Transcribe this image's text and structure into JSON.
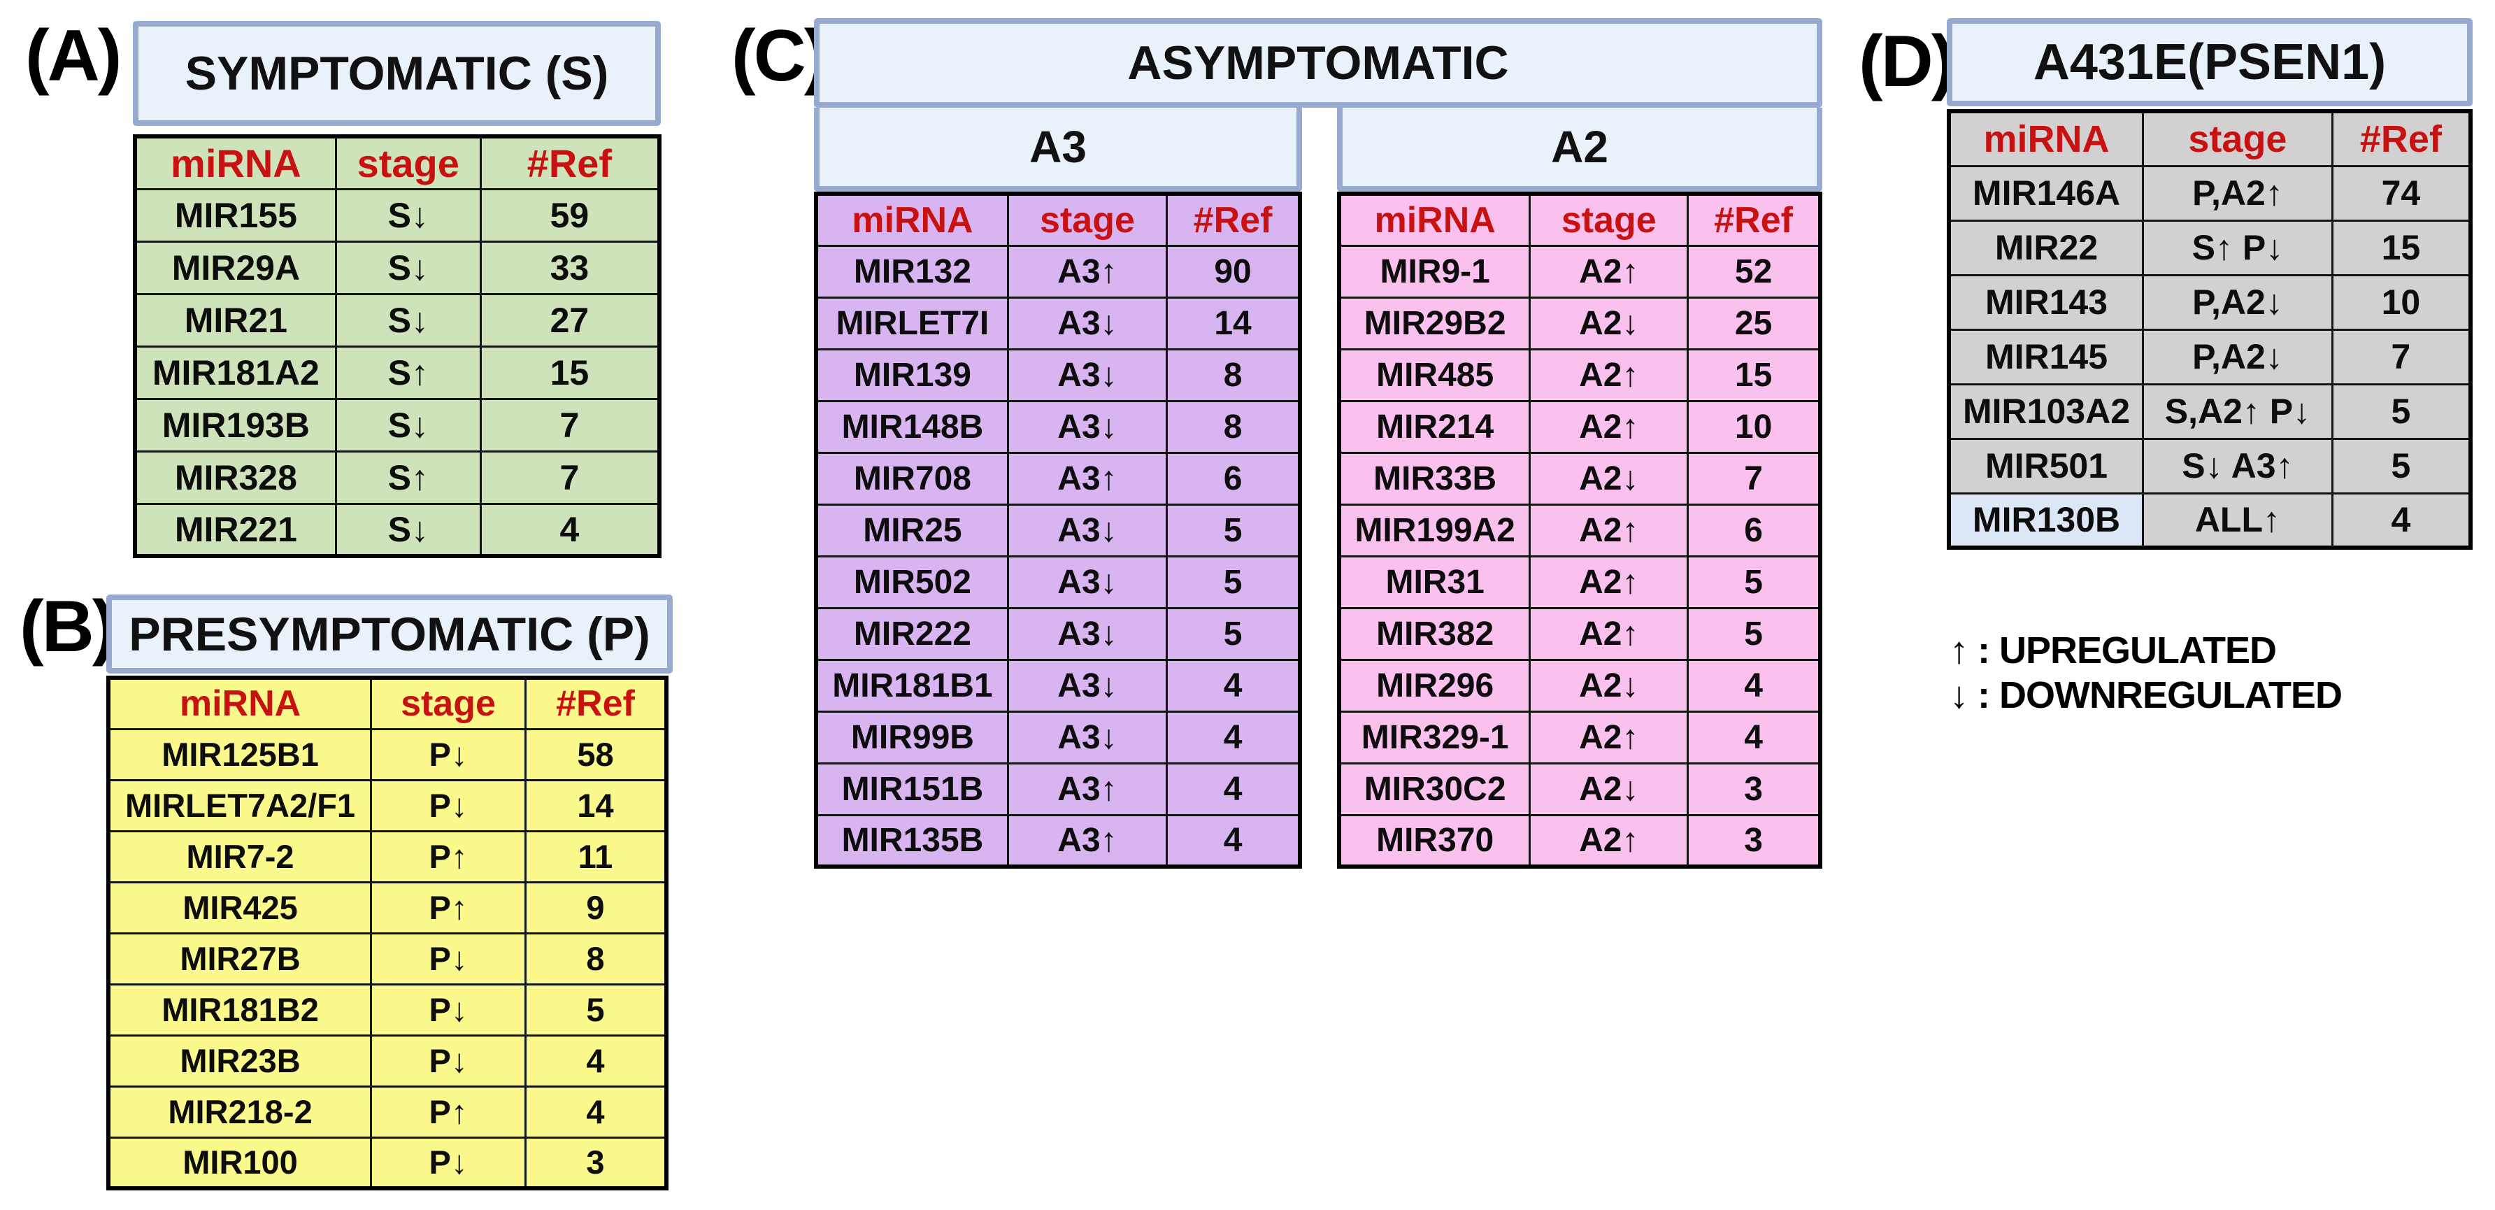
{
  "colors": {
    "panel_a_bg": "#cfe3ba",
    "panel_b_bg": "#fbf88c",
    "panel_c_a3_bg": "#d8b5f0",
    "panel_c_a2_bg": "#fac0ee",
    "panel_d_bg": "#d2d0d0",
    "header_fill": "#e9f1fa",
    "header_border": "#97abd0",
    "column_header_text": "#c81212",
    "highlight_cell_bg": "#dbe6f6",
    "table_border": "#000000"
  },
  "legend": {
    "up_line": "↑ : UPREGULATED",
    "down_line": "↓ : DOWNREGULATED"
  },
  "panels": {
    "A": {
      "label": "(A)",
      "title": "SYMPTOMATIC (S)",
      "columns": [
        "miRNA",
        "stage",
        "#Ref"
      ],
      "bg": "#cfe3ba",
      "rows": [
        [
          "MIR155",
          "S↓",
          "59"
        ],
        [
          "MIR29A",
          "S↓",
          "33"
        ],
        [
          "MIR21",
          "S↓",
          "27"
        ],
        [
          "MIR181A2",
          "S↑",
          "15"
        ],
        [
          "MIR193B",
          "S↓",
          "7"
        ],
        [
          "MIR328",
          "S↑",
          "7"
        ],
        [
          "MIR221",
          "S↓",
          "4"
        ]
      ]
    },
    "B": {
      "label": "(B)",
      "title": "PRESYMPTOMATIC (P)",
      "columns": [
        "miRNA",
        "stage",
        "#Ref"
      ],
      "bg": "#fbf88c",
      "rows": [
        [
          "MIR125B1",
          "P↓",
          "58"
        ],
        [
          "MIRLET7A2/F1",
          "P↓",
          "14"
        ],
        [
          "MIR7-2",
          "P↑",
          "11"
        ],
        [
          "MIR425",
          "P↑",
          "9"
        ],
        [
          "MIR27B",
          "P↓",
          "8"
        ],
        [
          "MIR181B2",
          "P↓",
          "5"
        ],
        [
          "MIR23B",
          "P↓",
          "4"
        ],
        [
          "MIR218-2",
          "P↑",
          "4"
        ],
        [
          "MIR100",
          "P↓",
          "3"
        ]
      ]
    },
    "C": {
      "label": "(C)",
      "title": "ASYMPTOMATIC",
      "A3": {
        "title": "A3",
        "columns": [
          "miRNA",
          "stage",
          "#Ref"
        ],
        "bg": "#d8b5f0",
        "rows": [
          [
            "MIR132",
            "A3↑",
            "90"
          ],
          [
            "MIRLET7I",
            "A3↓",
            "14"
          ],
          [
            "MIR139",
            "A3↓",
            "8"
          ],
          [
            "MIR148B",
            "A3↓",
            "8"
          ],
          [
            "MIR708",
            "A3↑",
            "6"
          ],
          [
            "MIR25",
            "A3↓",
            "5"
          ],
          [
            "MIR502",
            "A3↓",
            "5"
          ],
          [
            "MIR222",
            "A3↓",
            "5"
          ],
          [
            "MIR181B1",
            "A3↓",
            "4"
          ],
          [
            "MIR99B",
            "A3↓",
            "4"
          ],
          [
            "MIR151B",
            "A3↑",
            "4"
          ],
          [
            "MIR135B",
            "A3↑",
            "4"
          ]
        ]
      },
      "A2": {
        "title": "A2",
        "columns": [
          "miRNA",
          "stage",
          "#Ref"
        ],
        "bg": "#fac0ee",
        "rows": [
          [
            "MIR9-1",
            "A2↑",
            "52"
          ],
          [
            "MIR29B2",
            "A2↓",
            "25"
          ],
          [
            "MIR485",
            "A2↑",
            "15"
          ],
          [
            "MIR214",
            "A2↑",
            "10"
          ],
          [
            "MIR33B",
            "A2↓",
            "7"
          ],
          [
            "MIR199A2",
            "A2↑",
            "6"
          ],
          [
            "MIR31",
            "A2↑",
            "5"
          ],
          [
            "MIR382",
            "A2↑",
            "5"
          ],
          [
            "MIR296",
            "A2↓",
            "4"
          ],
          [
            "MIR329-1",
            "A2↑",
            "4"
          ],
          [
            "MIR30C2",
            "A2↓",
            "3"
          ],
          [
            "MIR370",
            "A2↑",
            "3"
          ]
        ]
      }
    },
    "D": {
      "label": "(D)",
      "title": "A431E(PSEN1)",
      "columns": [
        "miRNA",
        "stage",
        "#Ref"
      ],
      "bg": "#d2d0d0",
      "highlight_mirna": "MIR130B",
      "highlight_bg": "#dbe6f6",
      "rows": [
        [
          "MIR146A",
          "P,A2↑",
          "74"
        ],
        [
          "MIR22",
          "S↑ P↓",
          "15"
        ],
        [
          "MIR143",
          "P,A2↓",
          "10"
        ],
        [
          "MIR145",
          "P,A2↓",
          "7"
        ],
        [
          "MIR103A2",
          "S,A2↑ P↓",
          "5"
        ],
        [
          "MIR501",
          "S↓ A3↑",
          "5"
        ],
        [
          "MIR130B",
          "ALL↑",
          "4"
        ]
      ]
    }
  }
}
